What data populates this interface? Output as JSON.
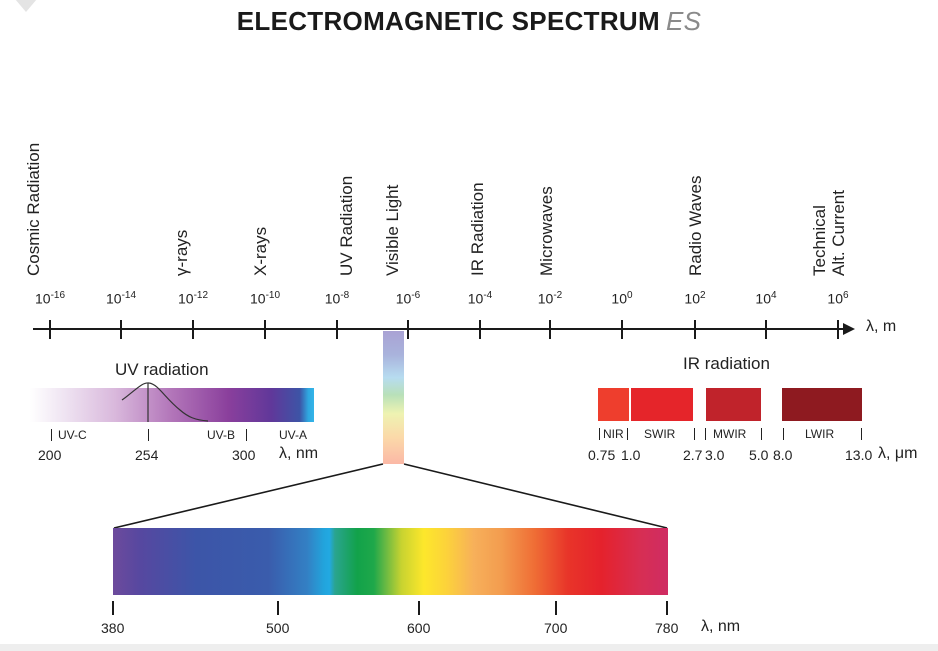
{
  "title": {
    "main": "ELECTROMAGNETIC SPECTRUM",
    "suffix": "ES"
  },
  "bands": [
    {
      "lines": [
        "Cosmic Radiation"
      ]
    },
    {
      "lines": [
        "γ-rays"
      ]
    },
    {
      "lines": [
        "X-rays"
      ]
    },
    {
      "lines": [
        "UV Radiation"
      ]
    },
    {
      "lines": [
        "Visible Light"
      ]
    },
    {
      "lines": [
        "IR Radiation"
      ]
    },
    {
      "lines": [
        "Microwaves"
      ]
    },
    {
      "lines": [
        "Radio Waves"
      ]
    },
    {
      "lines": [
        "Technical",
        "Alt. Current"
      ]
    }
  ],
  "main_axis": {
    "unit": "λ, m",
    "ticks": [
      {
        "base": "10",
        "exp": "-16"
      },
      {
        "base": "10",
        "exp": "-14"
      },
      {
        "base": "10",
        "exp": "-12"
      },
      {
        "base": "10",
        "exp": "-10"
      },
      {
        "base": "10",
        "exp": "-8"
      },
      {
        "base": "10",
        "exp": "-6"
      },
      {
        "base": "10",
        "exp": "-4"
      },
      {
        "base": "10",
        "exp": "-2"
      },
      {
        "base": "10",
        "exp": "0"
      },
      {
        "base": "10",
        "exp": "2"
      },
      {
        "base": "10",
        "exp": "4"
      },
      {
        "base": "10",
        "exp": "6"
      }
    ]
  },
  "uv": {
    "title": "UV radiation",
    "sub_labels": [
      "UV-C",
      "UV-B",
      "UV-A"
    ],
    "values": [
      "200",
      "254",
      "300"
    ],
    "unit": "λ, nm"
  },
  "ir": {
    "title": "IR radiation",
    "sub_labels": [
      "NIR",
      "SWIR",
      "MWIR",
      "LWIR"
    ],
    "values": [
      "0.75",
      "1.0",
      "2.7",
      "3.0",
      "5.0",
      "8.0",
      "13.0"
    ],
    "unit": "λ, μm",
    "colors": [
      "#ee3e2d",
      "#e5252a",
      "#c0232b",
      "#8e1a20"
    ]
  },
  "visible": {
    "ticks": [
      "380",
      "500",
      "600",
      "700",
      "780"
    ],
    "unit": "λ, nm"
  }
}
